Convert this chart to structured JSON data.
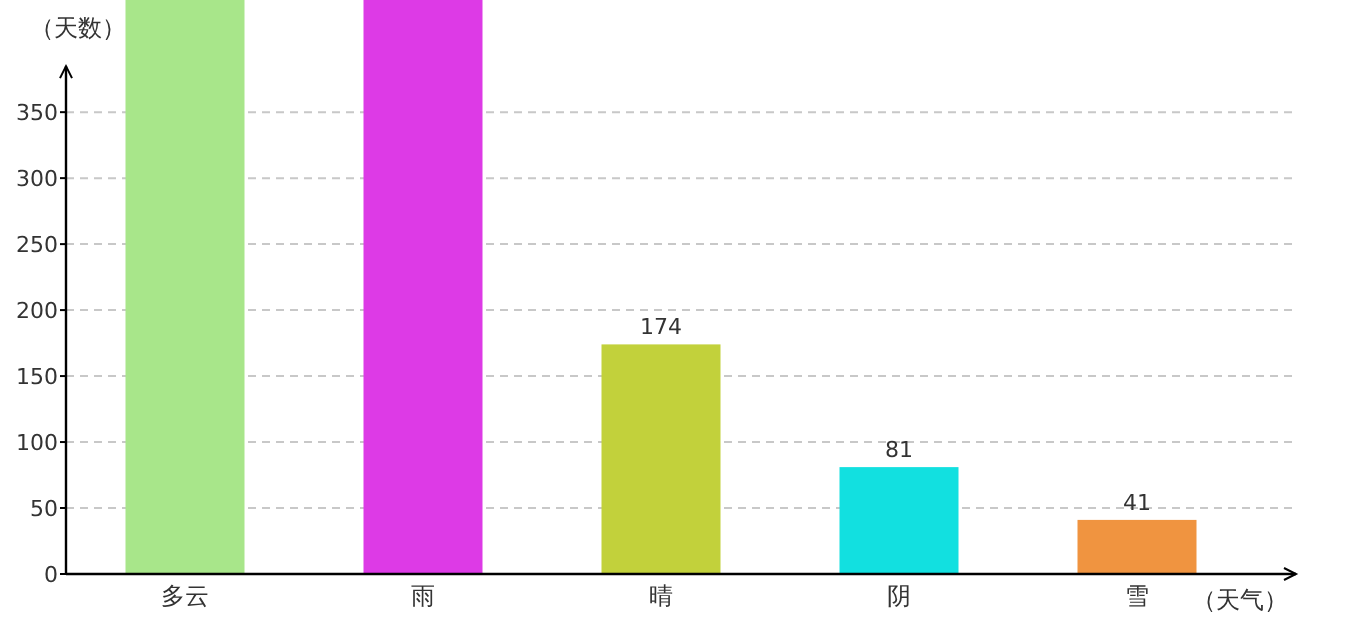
{
  "chart_data": {
    "type": "bar",
    "categories": [
      "多云",
      "雨",
      "晴",
      "阴",
      "雪"
    ],
    "values": [
      435,
      435,
      174,
      81,
      41
    ],
    "colors": [
      "#a8e68a",
      "#dd3ae6",
      "#c2d13b",
      "#12e0e0",
      "#f09440"
    ],
    "value_labels": [
      null,
      null,
      "174",
      "81",
      "41"
    ],
    "xlabel": "（天气）",
    "ylabel": "（天数）",
    "ylim": [
      0,
      435
    ],
    "yticks": [
      0,
      50,
      100,
      150,
      200,
      250,
      300,
      350
    ],
    "grid": "y"
  }
}
